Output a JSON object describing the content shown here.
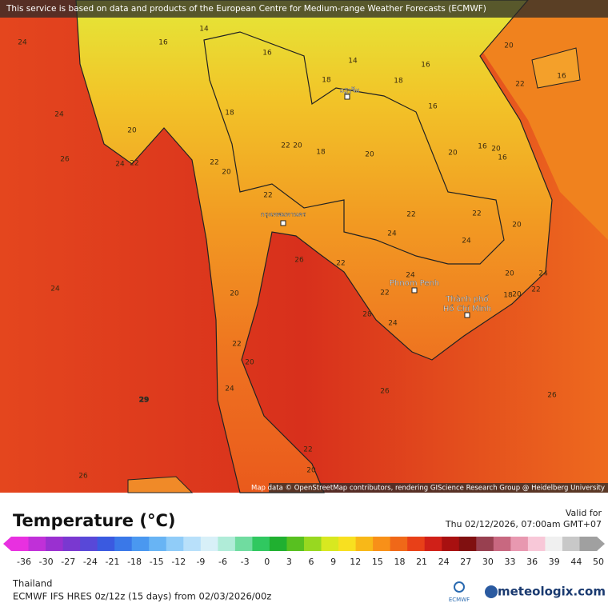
{
  "banner": "This service is based on data and products of the European Centre for Medium-range Weather Forecasts (ECMWF)",
  "map_labels": [
    24,
    14,
    16,
    16,
    14,
    16,
    20,
    22,
    16,
    18,
    18,
    24,
    16,
    18,
    20,
    22,
    20,
    18,
    20,
    20,
    16,
    20,
    16,
    26,
    24,
    22,
    22,
    20,
    22,
    22,
    22,
    20,
    24,
    24,
    26,
    22,
    24,
    20,
    22,
    24,
    20,
    18,
    20,
    22,
    24,
    28,
    24,
    22,
    20,
    26,
    26,
    24,
    22,
    20,
    26,
    29
  ],
  "cities": [
    "กรุงเทพมหานคร",
    "Phnom Penh",
    "Thành phố",
    "Hồ Chí Minh",
    "ວຽງຈັນ"
  ],
  "attribution": "Map data © OpenStreetMap contributors, rendering GIScience Research Group @ Heidelberg University",
  "legend": {
    "title": "Temperature (°C)",
    "valid_label": "Valid for",
    "valid_time": "Thu 02/12/2026, 07:00am GMT+07",
    "ticks": [
      -36,
      -30,
      -27,
      -24,
      -21,
      -18,
      -15,
      -12,
      -9,
      -6,
      -3,
      0,
      3,
      6,
      9,
      12,
      15,
      18,
      21,
      24,
      27,
      30,
      33,
      36,
      39,
      44,
      50
    ],
    "colors": [
      "#e830e0",
      "#c030d8",
      "#9a30d0",
      "#7a38d0",
      "#5848d8",
      "#3a5ae0",
      "#3a78e8",
      "#4a98f0",
      "#68b4f4",
      "#90ccf8",
      "#b8e0fa",
      "#d8f0f8",
      "#b0ecd8",
      "#70dca0",
      "#30c860",
      "#20b030",
      "#58c020",
      "#98d820",
      "#d8e820",
      "#f8e020",
      "#f8b818",
      "#f89018",
      "#f06818",
      "#e84018",
      "#d02018",
      "#a81010",
      "#801010",
      "#984050",
      "#c86880",
      "#e898b0",
      "#f8c8d8",
      "#f0f0f0",
      "#c8c8c8",
      "#a0a0a0"
    ]
  },
  "footer": {
    "region": "Thailand",
    "model": "ECMWF IFS HRES 0z/12z (15 days) from 02/03/2026/00z",
    "ecmwf": "ECMWF",
    "brand": "meteologix.com"
  }
}
